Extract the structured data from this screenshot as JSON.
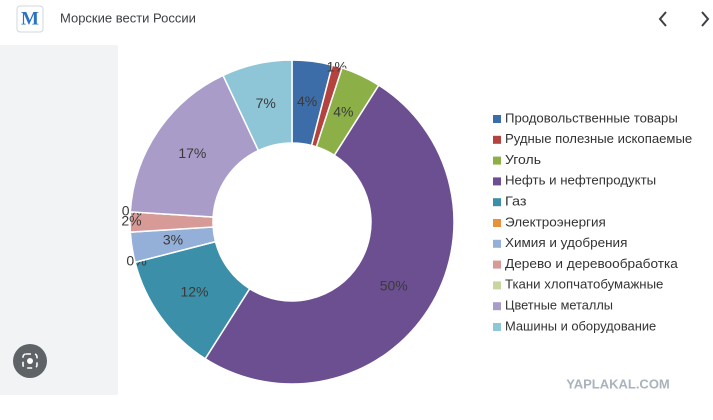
{
  "header": {
    "logo": "M",
    "site": "Морские вести России"
  },
  "chart_data": {
    "type": "pie",
    "donut": true,
    "categories": [
      "Продовольственные товары",
      "Рудные полезные ископаемые",
      "Уголь",
      "Нефть и нефтепродукты",
      "Газ",
      "Электроэнергия",
      "Химия и удобрения",
      "Дерево и деревообработка",
      "Ткани хлопчатобумажные",
      "Цветные металлы",
      "Машины и оборудование"
    ],
    "values": [
      4,
      1,
      4,
      50,
      12,
      0,
      3,
      2,
      0,
      17,
      7
    ],
    "value_labels": [
      "4%",
      "1%",
      "4%",
      "50%",
      "12%",
      "0%",
      "3%",
      "2%",
      "0%",
      "17%",
      "7%"
    ],
    "colors": [
      "#3d6da8",
      "#b4423f",
      "#8daf48",
      "#6b4f90",
      "#3b8fa8",
      "#e8903c",
      "#94afd8",
      "#d89a96",
      "#c6d69e",
      "#a99cc8",
      "#8ec6d8"
    ],
    "legend": "right"
  },
  "watermark": "YAPLAKAL.COM"
}
